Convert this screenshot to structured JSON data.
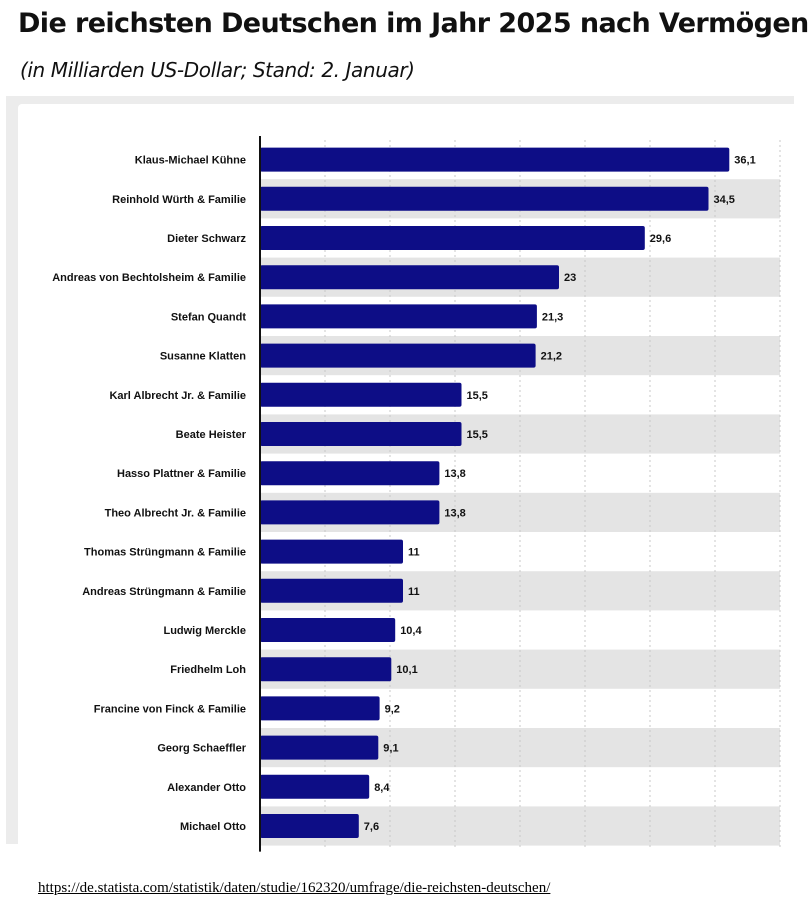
{
  "header": {
    "title": "Die reichsten Deutschen im Jahr 2025 nach Vermögen",
    "subtitle": "(in Milliarden US-Dollar; Stand: 2. Januar)"
  },
  "source": {
    "url": "https://de.statista.com/statistik/daten/studie/162320/umfrage/die-reichsten-deutschen/"
  },
  "colors": {
    "bar": "#0d0d86",
    "band": "#e4e4e4",
    "axis": "#111111",
    "grid": "#c8c8c8"
  },
  "chart_data": {
    "type": "bar",
    "orientation": "horizontal",
    "categories": [
      "Klaus-Michael Kühne",
      "Reinhold Würth & Familie",
      "Dieter Schwarz",
      "Andreas von Bechtolsheim & Familie",
      "Stefan Quandt",
      "Susanne Klatten",
      "Karl Albrecht Jr. & Familie",
      "Beate Heister",
      "Hasso Plattner & Familie",
      "Theo Albrecht Jr. & Familie",
      "Thomas Strüngmann & Familie",
      "Andreas Strüngmann & Familie",
      "Ludwig Merckle",
      "Friedhelm Loh",
      "Francine von Finck & Familie",
      "Georg Schaeffler",
      "Alexander Otto",
      "Michael Otto"
    ],
    "values": [
      36.1,
      34.5,
      29.6,
      23,
      21.3,
      21.2,
      15.5,
      15.5,
      13.8,
      13.8,
      11,
      11,
      10.4,
      10.1,
      9.2,
      9.1,
      8.4,
      7.6
    ],
    "value_labels": [
      "36,1",
      "34,5",
      "29,6",
      "23",
      "21,3",
      "21,2",
      "15,5",
      "15,5",
      "13,8",
      "13,8",
      "11",
      "11",
      "10,4",
      "10,1",
      "9,2",
      "9,1",
      "8,4",
      "7,6"
    ],
    "xlim": [
      0,
      40
    ],
    "grid": true,
    "alternating_row_bands": true
  }
}
